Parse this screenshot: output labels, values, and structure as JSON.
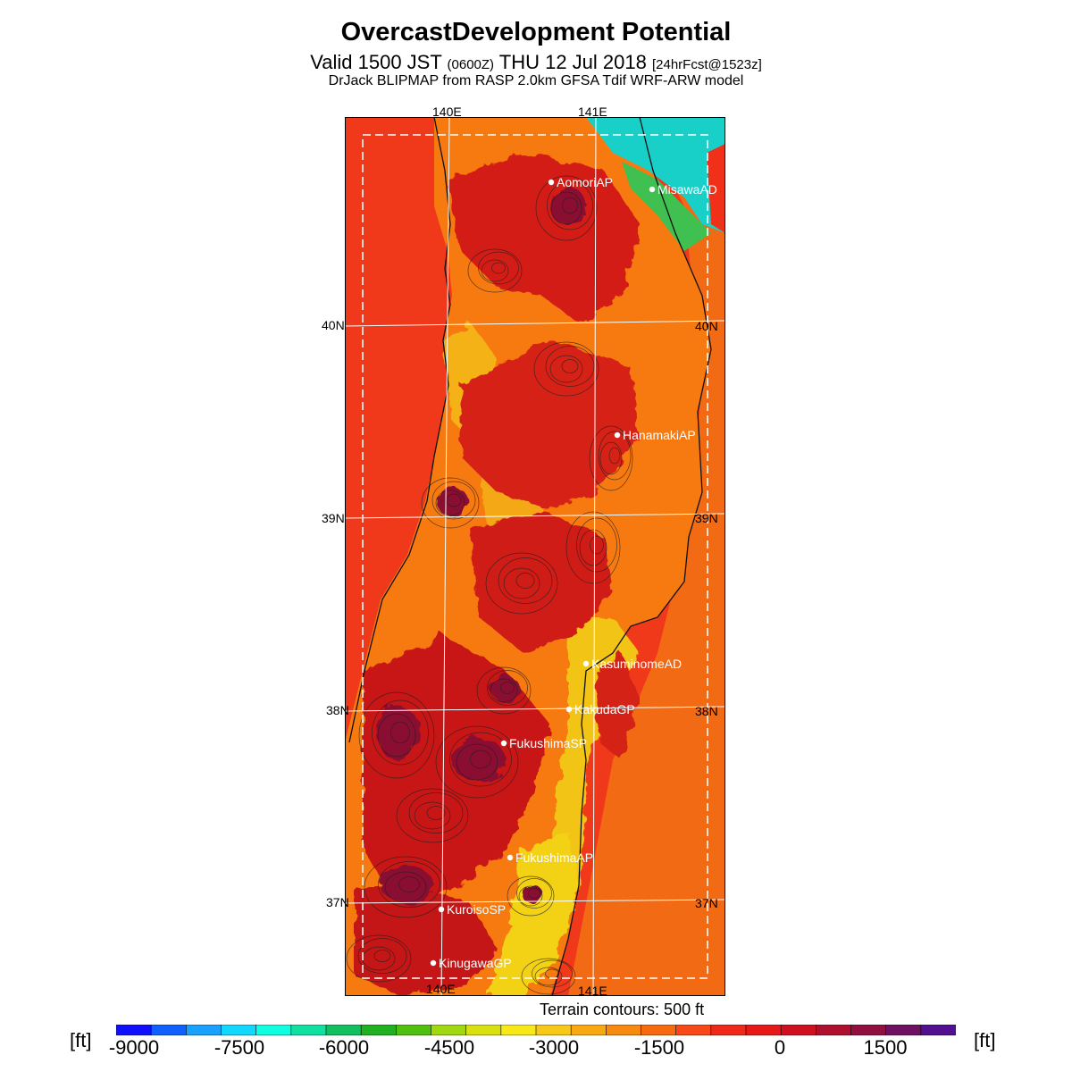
{
  "header": {
    "title": "OvercastDevelopment Potential",
    "valid_main": "Valid 1500 JST",
    "valid_utc": "(0600Z)",
    "valid_date": "THU 12 Jul 2018",
    "forecast_info": "[24hrFcst@1523z]",
    "source": "DrJack BLIPMAP from RASP 2.0km GFSA Tdif WRF-ARW model"
  },
  "map": {
    "lon_labels": [
      "140E",
      "141E"
    ],
    "lat_labels": [
      "40N",
      "39N",
      "38N",
      "37N"
    ],
    "stations": [
      {
        "name": "AomoriAP"
      },
      {
        "name": "MisawaAD"
      },
      {
        "name": "HanamakiAP"
      },
      {
        "name": "KasuminomeAD"
      },
      {
        "name": "KakudaGP"
      },
      {
        "name": "FukushimaSP"
      },
      {
        "name": "FukushimaAP"
      },
      {
        "name": "KuroisoSP"
      },
      {
        "name": "KinugawaGP"
      }
    ],
    "terrain_note": "Terrain contours: 500 ft",
    "colors": {
      "sea": "#f0381a",
      "land_base": "#f77a10",
      "high": "#c81818",
      "peak": "#8a1030",
      "cool_coast": "#e8d010",
      "cold": "#18c0b0",
      "grid": "#ffffff",
      "contour": "#202020"
    }
  },
  "colorbar": {
    "unit_left": "[ft]",
    "unit_right": "[ft]",
    "tick_labels": [
      "-9000",
      "-7500",
      "-6000",
      "-4500",
      "-3000",
      "-1500",
      "0",
      "1500"
    ],
    "colors": [
      "#1010ff",
      "#1060ff",
      "#1aa0ff",
      "#10d8ff",
      "#10ffe0",
      "#10e0a0",
      "#10c060",
      "#20b020",
      "#50c010",
      "#a0d810",
      "#d8e010",
      "#f8e818",
      "#f8c818",
      "#f8a810",
      "#f88a10",
      "#f86a10",
      "#f84818",
      "#f02818",
      "#e81818",
      "#d01020",
      "#b01030",
      "#901040",
      "#701060",
      "#501090"
    ]
  }
}
